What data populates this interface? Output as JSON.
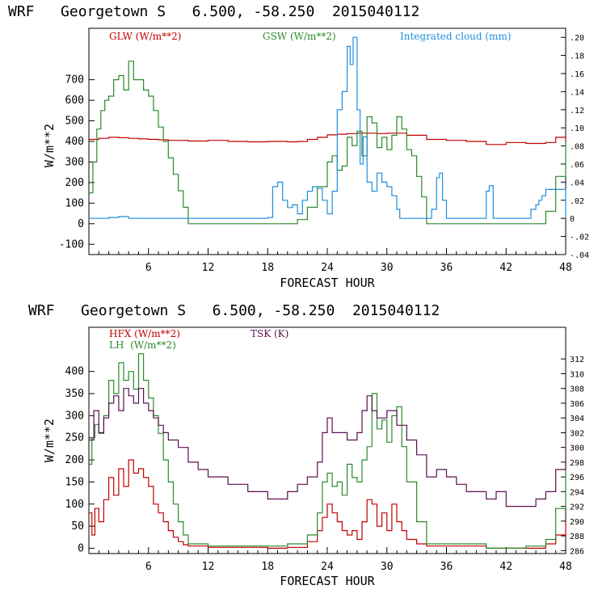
{
  "chart_data": [
    {
      "type": "line",
      "title": "WRF   Georgetown S   6.500, -58.250  2015040112",
      "xlabel": "FORECAST HOUR",
      "ylabel": "W/m**2",
      "xlim": [
        0,
        48
      ],
      "ylim": [
        -150,
        950
      ],
      "y2lim": [
        -0.04,
        0.21
      ],
      "xticks": [
        "6",
        "12",
        "18",
        "24",
        "30",
        "36",
        "42",
        "48"
      ],
      "yticks": [
        "-100",
        "0",
        "100",
        "200",
        "300",
        "400",
        "500",
        "600",
        "700"
      ],
      "y2ticks": [
        ".20",
        ".18",
        ".16",
        ".14",
        ".12",
        ".10",
        ".08",
        ".06",
        ".04",
        ".02",
        "0",
        "-.02",
        "-.04"
      ],
      "legend": [
        "GLW (W/m**2)",
        "GSW (W/m**2)",
        "Integrated cloud (mm)"
      ],
      "colors": {
        "glw": "#c00000",
        "gsw": "#2a8a2a",
        "cloud": "#1f8ee0"
      },
      "series": [
        {
          "name": "GLW",
          "axis": "left",
          "x": [
            0,
            1,
            2,
            3,
            4,
            5,
            6,
            7,
            8,
            10,
            12,
            14,
            16,
            18,
            20,
            21,
            22,
            23,
            24,
            25,
            26,
            27,
            28,
            29,
            30,
            31,
            32,
            34,
            36,
            38,
            40,
            42,
            44,
            46,
            47,
            48
          ],
          "values": [
            410,
            415,
            420,
            418,
            415,
            412,
            410,
            408,
            405,
            402,
            405,
            400,
            398,
            400,
            398,
            400,
            410,
            420,
            432,
            435,
            438,
            440,
            440,
            438,
            440,
            440,
            430,
            410,
            405,
            400,
            385,
            395,
            390,
            395,
            420,
            390
          ]
        },
        {
          "name": "GSW",
          "axis": "left",
          "x": [
            0,
            0.4,
            0.8,
            1.2,
            1.6,
            2,
            2.5,
            3,
            3.5,
            4,
            4.5,
            5,
            5.5,
            6,
            6.5,
            7,
            7.5,
            8,
            8.5,
            9,
            9.5,
            10,
            12,
            18,
            20,
            21,
            22,
            23,
            24,
            24.5,
            25,
            25.5,
            26,
            26.5,
            27,
            27.5,
            28,
            28.5,
            29,
            29.5,
            30,
            30.5,
            31,
            31.5,
            32,
            32.5,
            33,
            33.5,
            34,
            36,
            40,
            45,
            46,
            47,
            48
          ],
          "values": [
            150,
            300,
            460,
            550,
            600,
            620,
            700,
            720,
            650,
            790,
            700,
            700,
            650,
            620,
            550,
            470,
            400,
            320,
            240,
            160,
            80,
            0,
            0,
            0,
            0,
            20,
            80,
            180,
            300,
            330,
            260,
            280,
            420,
            380,
            450,
            330,
            520,
            490,
            370,
            420,
            360,
            430,
            520,
            460,
            360,
            330,
            230,
            130,
            0,
            0,
            0,
            0,
            60,
            230,
            400
          ]
        },
        {
          "name": "Integrated cloud",
          "axis": "right",
          "x": [
            0,
            1,
            2,
            3,
            4,
            5,
            10,
            15,
            17,
            18,
            18.5,
            19,
            19.5,
            20,
            20.5,
            21,
            21.5,
            22,
            22.5,
            23,
            23.5,
            24,
            24.5,
            25,
            25.5,
            26,
            26.3,
            26.6,
            27,
            27.3,
            27.6,
            28,
            28.5,
            29,
            29.5,
            30,
            30.5,
            31,
            31.3,
            33,
            34,
            34.5,
            35,
            35.3,
            35.6,
            36,
            38,
            39.5,
            40,
            40.3,
            40.7,
            41,
            44,
            44.5,
            45,
            45.3,
            45.6,
            46,
            48
          ],
          "values": [
            0,
            0,
            0.001,
            0.002,
            0,
            0,
            0,
            0,
            0,
            0.001,
            0.035,
            0.04,
            0.02,
            0.012,
            0.015,
            0.005,
            0.02,
            0.03,
            0.035,
            0.033,
            0.02,
            0.005,
            0.03,
            0.12,
            0.14,
            0.19,
            0.17,
            0.2,
            0.12,
            0.06,
            0.09,
            0.04,
            0.03,
            0.05,
            0.04,
            0.035,
            0.025,
            0.01,
            0,
            0,
            0,
            0.01,
            0.045,
            0.05,
            0.02,
            0,
            0,
            0,
            0.03,
            0.036,
            0,
            0,
            0,
            0.01,
            0.015,
            0.02,
            0.025,
            0.032,
            0
          ]
        }
      ]
    },
    {
      "type": "line",
      "title": "WRF   Georgetown S   6.500, -58.250  2015040112",
      "xlabel": "FORECAST HOUR",
      "ylabel": "W/m**2",
      "xlim": [
        0,
        48
      ],
      "ylim": [
        -12,
        500
      ],
      "y2lim": [
        285.6,
        316.3
      ],
      "xticks": [
        "6",
        "12",
        "18",
        "24",
        "30",
        "36",
        "42",
        "48"
      ],
      "yticks": [
        "0",
        "50",
        "100",
        "150",
        "200",
        "250",
        "300",
        "350",
        "400"
      ],
      "y2ticks": [
        "312",
        "310",
        "308",
        "306",
        "304",
        "302",
        "300",
        "298",
        "296",
        "294",
        "292",
        "290",
        "288",
        "286"
      ],
      "legend": [
        "HFX (W/m**2)",
        "LH  (W/m**2)",
        "TSK (K)"
      ],
      "colors": {
        "hfx": "#c00000",
        "lh": "#2a8a2a",
        "tsk": "#5a1050"
      },
      "series": [
        {
          "name": "HFX",
          "axis": "left",
          "x": [
            0,
            0.3,
            0.6,
            1,
            1.5,
            2,
            2.5,
            3,
            3.5,
            4,
            4.5,
            5,
            5.5,
            6,
            6.5,
            7,
            7.5,
            8,
            8.5,
            9,
            9.5,
            10,
            12,
            18,
            20,
            22,
            23,
            23.5,
            24,
            24.5,
            25,
            25.5,
            26,
            26.5,
            27,
            27.5,
            28,
            28.5,
            29,
            29.5,
            30,
            30.5,
            31,
            31.5,
            32,
            33,
            34,
            40,
            44,
            46,
            47,
            48
          ],
          "values": [
            80,
            30,
            90,
            60,
            110,
            160,
            120,
            180,
            140,
            200,
            170,
            180,
            160,
            140,
            100,
            80,
            60,
            40,
            25,
            15,
            8,
            5,
            2,
            0,
            2,
            15,
            40,
            70,
            100,
            80,
            60,
            40,
            30,
            40,
            20,
            60,
            110,
            100,
            50,
            80,
            40,
            100,
            60,
            40,
            20,
            10,
            5,
            0,
            0,
            10,
            30,
            60
          ]
        },
        {
          "name": "LH",
          "axis": "left",
          "x": [
            0,
            0.3,
            0.6,
            1,
            1.5,
            2,
            2.5,
            3,
            3.5,
            4,
            4.5,
            5,
            5.5,
            6,
            6.5,
            7,
            7.5,
            8,
            8.5,
            9,
            9.5,
            10,
            12,
            18,
            20,
            22,
            23,
            23.5,
            24,
            24.5,
            25,
            25.5,
            26,
            26.5,
            27,
            27.5,
            28,
            28.5,
            29,
            29.5,
            30,
            30.5,
            31,
            31.5,
            32,
            33,
            34,
            40,
            44,
            46,
            47,
            48
          ],
          "values": [
            190,
            250,
            280,
            260,
            300,
            380,
            350,
            420,
            380,
            400,
            360,
            440,
            380,
            340,
            300,
            260,
            200,
            150,
            100,
            60,
            30,
            10,
            5,
            5,
            10,
            30,
            80,
            150,
            170,
            140,
            150,
            120,
            190,
            160,
            150,
            200,
            230,
            350,
            270,
            290,
            240,
            300,
            320,
            230,
            150,
            60,
            10,
            0,
            5,
            20,
            90,
            200
          ]
        },
        {
          "name": "TSK",
          "axis": "right",
          "x": [
            0,
            0.5,
            1,
            1.5,
            2,
            2.5,
            3,
            3.5,
            4,
            4.5,
            5,
            5.5,
            6,
            6.5,
            7,
            7.5,
            8,
            9,
            10,
            11,
            12,
            14,
            16,
            18,
            20,
            21,
            22,
            23,
            23.5,
            24,
            24.5,
            25,
            26,
            27,
            27.5,
            28,
            28.5,
            29,
            30,
            31,
            32,
            33,
            34,
            35,
            36,
            37,
            38,
            40,
            41,
            42,
            44,
            45,
            46,
            47,
            48
          ],
          "values": [
            301,
            305,
            302,
            304,
            306,
            307,
            305,
            308,
            307,
            306,
            308,
            306,
            305,
            304,
            303,
            302,
            301,
            300,
            298,
            297,
            296,
            295,
            294,
            293,
            294,
            295,
            296,
            298,
            302,
            304,
            302,
            302,
            301,
            302,
            305,
            307,
            305,
            304,
            305,
            303,
            301,
            299,
            296,
            297,
            296,
            295,
            294,
            293,
            294,
            292,
            292,
            293,
            294,
            297,
            301
          ]
        }
      ]
    }
  ]
}
